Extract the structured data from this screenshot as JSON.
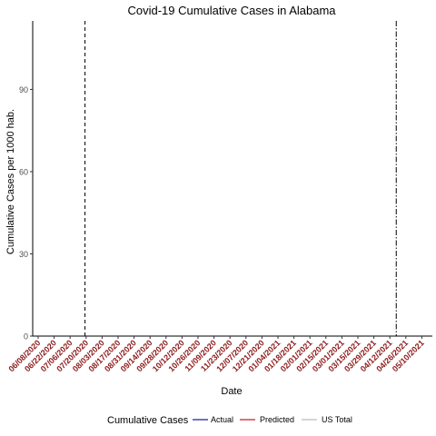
{
  "chart_data": {
    "type": "line",
    "title": "Covid-19  Cumulative Cases  in  Alabama",
    "xlabel": "Date",
    "ylabel": "Cumulative Cases  per 1000 hab.",
    "ylim": [
      0,
      115
    ],
    "yticks": [
      0,
      30,
      60,
      90
    ],
    "x_ticks": [
      "06/08/2020",
      "06/22/2020",
      "07/06/2020",
      "07/20/2020",
      "08/03/2020",
      "08/17/2020",
      "08/31/2020",
      "09/14/2020",
      "09/28/2020",
      "10/12/2020",
      "10/26/2020",
      "11/09/2020",
      "11/23/2020",
      "12/07/2020",
      "12/21/2020",
      "01/04/2021",
      "01/18/2021",
      "02/01/2021",
      "02/15/2021",
      "03/01/2021",
      "03/15/2021",
      "03/29/2021",
      "04/12/2021",
      "04/26/2021",
      "05/10/2021"
    ],
    "x_tick_color": "#8b1a1a",
    "vlines": [
      {
        "name": "dashed-vline",
        "x_index": 2.93,
        "style": "dashed"
      },
      {
        "name": "dashdot-vline",
        "x_index": 22.4,
        "style": "dashdot"
      }
    ],
    "grid": false,
    "legend": {
      "title": "Cumulative Cases",
      "position": "bottom",
      "entries": [
        {
          "label": "Actual",
          "color": "#1f1f99"
        },
        {
          "label": "Predicted",
          "color": "#cc1f1f"
        },
        {
          "label": "US Total",
          "color": "#bbbbbb"
        }
      ]
    },
    "series": []
  }
}
